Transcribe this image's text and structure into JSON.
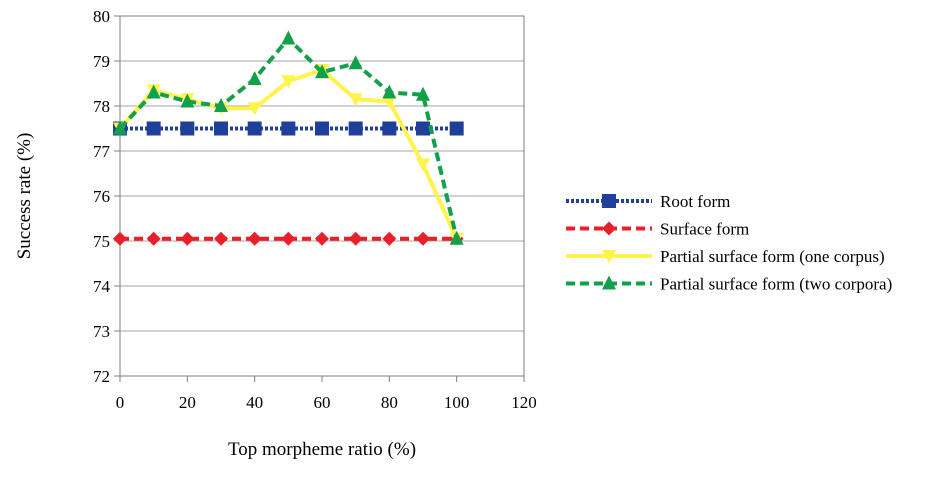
{
  "chart_data": {
    "type": "line",
    "title": "",
    "xlabel": "Top morpheme ratio (%)",
    "ylabel": "Success rate (%)",
    "xlim": [
      0,
      120
    ],
    "ylim": [
      72,
      80
    ],
    "xticks": [
      0,
      20,
      40,
      60,
      80,
      100,
      120
    ],
    "yticks": [
      72,
      73,
      74,
      75,
      76,
      77,
      78,
      79,
      80
    ],
    "grid": "horizontal",
    "legend_position": "right",
    "x": [
      0,
      10,
      20,
      30,
      40,
      50,
      60,
      70,
      80,
      90,
      100
    ],
    "series": [
      {
        "name": "Root form",
        "color": "#1F3F9A",
        "line_style": "dotted",
        "marker": "square",
        "values": [
          77.5,
          77.5,
          77.5,
          77.5,
          77.5,
          77.5,
          77.5,
          77.5,
          77.5,
          77.5,
          77.5
        ]
      },
      {
        "name": "Surface form",
        "color": "#E8202A",
        "line_style": "dashed",
        "marker": "diamond",
        "values": [
          75.05,
          75.05,
          75.05,
          75.05,
          75.05,
          75.05,
          75.05,
          75.05,
          75.05,
          75.05,
          75.05
        ]
      },
      {
        "name": "Partial surface form (one corpus)",
        "color": "#FFF34C",
        "line_style": "solid",
        "marker": "triangle-down",
        "values": [
          77.5,
          78.35,
          78.15,
          77.95,
          77.95,
          78.55,
          78.8,
          78.15,
          78.1,
          76.7,
          75.05
        ]
      },
      {
        "name": "Partial surface form (two corpora)",
        "color": "#13A04A",
        "line_style": "dashed",
        "marker": "triangle-up",
        "values": [
          77.5,
          78.3,
          78.1,
          78.0,
          78.6,
          79.5,
          78.75,
          78.95,
          78.3,
          78.25,
          75.05
        ]
      }
    ]
  }
}
